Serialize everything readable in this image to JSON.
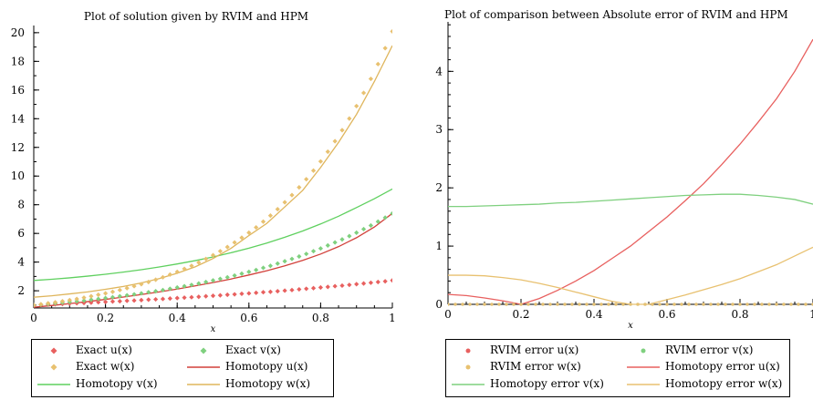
{
  "chart_data": [
    {
      "type": "line",
      "title": "Plot of solution given by RVIM and HPM",
      "xlabel": "x",
      "ylabel": "",
      "xlim": [
        0,
        1
      ],
      "ylim": [
        0.8,
        20.5
      ],
      "xticks": [
        0,
        0.2,
        0.4,
        0.6,
        0.8,
        1
      ],
      "xtick_labels": [
        "0",
        "0.2",
        "0.4",
        "0.6",
        "0.8",
        "1"
      ],
      "yticks": [
        2,
        4,
        6,
        8,
        10,
        12,
        14,
        16,
        18,
        20
      ],
      "ytick_labels": [
        "2",
        "4",
        "6",
        "8",
        "10",
        "12",
        "14",
        "16",
        "18",
        "20"
      ],
      "grid": false,
      "legend_position": "bottom",
      "series": [
        {
          "name": "Exact u(x)",
          "style": "points",
          "marker": "diamond",
          "color": "#e8605f",
          "x": [
            0,
            0.02,
            0.04,
            0.06,
            0.08,
            0.1,
            0.12,
            0.14,
            0.16,
            0.18,
            0.2,
            0.22,
            0.24,
            0.26,
            0.28,
            0.3,
            0.32,
            0.34,
            0.36,
            0.38,
            0.4,
            0.42,
            0.44,
            0.46,
            0.48,
            0.5,
            0.52,
            0.54,
            0.56,
            0.58,
            0.6,
            0.62,
            0.64,
            0.66,
            0.68,
            0.7,
            0.72,
            0.74,
            0.76,
            0.78,
            0.8,
            0.82,
            0.84,
            0.86,
            0.88,
            0.9,
            0.92,
            0.94,
            0.96,
            0.98,
            1
          ],
          "y": [
            1.0,
            1.02,
            1.04,
            1.06,
            1.08,
            1.11,
            1.13,
            1.15,
            1.17,
            1.2,
            1.22,
            1.25,
            1.27,
            1.3,
            1.32,
            1.35,
            1.38,
            1.4,
            1.43,
            1.46,
            1.49,
            1.52,
            1.55,
            1.58,
            1.62,
            1.65,
            1.68,
            1.72,
            1.75,
            1.79,
            1.82,
            1.86,
            1.9,
            1.93,
            1.97,
            2.01,
            2.05,
            2.1,
            2.14,
            2.18,
            2.23,
            2.27,
            2.32,
            2.36,
            2.41,
            2.46,
            2.51,
            2.56,
            2.61,
            2.66,
            2.72
          ]
        },
        {
          "name": "Exact v(x)",
          "style": "points",
          "marker": "diamond",
          "color": "#7fd07f",
          "x": [
            0,
            0.02,
            0.04,
            0.06,
            0.08,
            0.1,
            0.12,
            0.14,
            0.16,
            0.18,
            0.2,
            0.22,
            0.24,
            0.26,
            0.28,
            0.3,
            0.32,
            0.34,
            0.36,
            0.38,
            0.4,
            0.42,
            0.44,
            0.46,
            0.48,
            0.5,
            0.52,
            0.54,
            0.56,
            0.58,
            0.6,
            0.62,
            0.64,
            0.66,
            0.68,
            0.7,
            0.72,
            0.74,
            0.76,
            0.78,
            0.8,
            0.82,
            0.84,
            0.86,
            0.88,
            0.9,
            0.92,
            0.94,
            0.96,
            0.98,
            1
          ],
          "y": [
            1.0,
            1.04,
            1.08,
            1.13,
            1.17,
            1.22,
            1.27,
            1.32,
            1.38,
            1.43,
            1.49,
            1.55,
            1.62,
            1.68,
            1.75,
            1.82,
            1.9,
            1.97,
            2.05,
            2.14,
            2.23,
            2.32,
            2.41,
            2.51,
            2.61,
            2.72,
            2.83,
            2.94,
            3.06,
            3.19,
            3.32,
            3.45,
            3.6,
            3.74,
            3.9,
            4.06,
            4.22,
            4.39,
            4.57,
            4.76,
            4.95,
            5.16,
            5.37,
            5.58,
            5.81,
            6.05,
            6.3,
            6.55,
            6.82,
            7.1,
            7.39
          ]
        },
        {
          "name": "Exact w(x)",
          "style": "points",
          "marker": "diamond",
          "color": "#e8c170",
          "x": [
            0,
            0.02,
            0.04,
            0.06,
            0.08,
            0.1,
            0.12,
            0.14,
            0.16,
            0.18,
            0.2,
            0.22,
            0.24,
            0.26,
            0.28,
            0.3,
            0.32,
            0.34,
            0.36,
            0.38,
            0.4,
            0.42,
            0.44,
            0.46,
            0.48,
            0.5,
            0.52,
            0.54,
            0.56,
            0.58,
            0.6,
            0.62,
            0.64,
            0.66,
            0.68,
            0.7,
            0.72,
            0.74,
            0.76,
            0.78,
            0.8,
            0.82,
            0.84,
            0.86,
            0.88,
            0.9,
            0.92,
            0.94,
            0.96,
            0.98,
            1
          ],
          "y": [
            1.0,
            1.06,
            1.13,
            1.2,
            1.27,
            1.35,
            1.43,
            1.52,
            1.62,
            1.72,
            1.82,
            1.93,
            2.05,
            2.18,
            2.32,
            2.46,
            2.61,
            2.77,
            2.94,
            3.13,
            3.32,
            3.53,
            3.74,
            3.97,
            4.22,
            4.48,
            4.76,
            5.05,
            5.37,
            5.7,
            6.05,
            6.42,
            6.82,
            7.24,
            7.69,
            8.17,
            8.67,
            9.21,
            9.78,
            10.38,
            11.02,
            11.7,
            12.43,
            13.2,
            14.01,
            14.88,
            15.8,
            16.78,
            17.81,
            18.92,
            20.09
          ]
        },
        {
          "name": "Homotopy u(x)",
          "style": "line",
          "color": "#d2403a",
          "x": [
            0,
            0.05,
            0.1,
            0.15,
            0.2,
            0.25,
            0.3,
            0.35,
            0.4,
            0.45,
            0.5,
            0.55,
            0.6,
            0.65,
            0.7,
            0.75,
            0.8,
            0.85,
            0.9,
            0.95,
            1
          ],
          "y": [
            0.85,
            0.97,
            1.1,
            1.24,
            1.4,
            1.56,
            1.74,
            1.92,
            2.12,
            2.34,
            2.57,
            2.82,
            3.1,
            3.4,
            3.74,
            4.12,
            4.56,
            5.08,
            5.7,
            6.45,
            7.4
          ]
        },
        {
          "name": "Homotopy v(x)",
          "style": "line",
          "color": "#5fd05f",
          "x": [
            0,
            0.05,
            0.1,
            0.15,
            0.2,
            0.25,
            0.3,
            0.35,
            0.4,
            0.45,
            0.5,
            0.55,
            0.6,
            0.65,
            0.7,
            0.75,
            0.8,
            0.85,
            0.9,
            0.95,
            1
          ],
          "y": [
            2.72,
            2.8,
            2.9,
            3.02,
            3.15,
            3.3,
            3.47,
            3.66,
            3.87,
            4.1,
            4.36,
            4.65,
            4.97,
            5.33,
            5.73,
            6.17,
            6.66,
            7.2,
            7.8,
            8.42,
            9.1
          ]
        },
        {
          "name": "Homotopy w(x)",
          "style": "line",
          "color": "#dfb55c",
          "x": [
            0,
            0.05,
            0.1,
            0.15,
            0.2,
            0.25,
            0.3,
            0.35,
            0.4,
            0.45,
            0.5,
            0.55,
            0.6,
            0.65,
            0.7,
            0.75,
            0.8,
            0.85,
            0.9,
            0.95,
            1
          ],
          "y": [
            1.55,
            1.65,
            1.78,
            1.92,
            2.1,
            2.3,
            2.55,
            2.85,
            3.22,
            3.67,
            4.25,
            4.96,
            5.85,
            6.7,
            7.85,
            9.0,
            10.6,
            12.35,
            14.3,
            16.6,
            19.1
          ]
        }
      ],
      "legend": {
        "rows": [
          [
            "Exact u(x)",
            "Exact v(x)"
          ],
          [
            "Exact w(x)",
            "Homotopy u(x)"
          ],
          [
            "Homotopy v(x)",
            "Homotopy w(x)"
          ]
        ]
      }
    },
    {
      "type": "line",
      "title": "Plot of comparison between Absolute error of RVIM and HPM",
      "xlabel": "x",
      "ylabel": "",
      "xlim": [
        0,
        1
      ],
      "ylim": [
        0,
        4.85
      ],
      "xticks": [
        0,
        0.2,
        0.4,
        0.6,
        0.8,
        1
      ],
      "xtick_labels": [
        "0",
        "0.2",
        "0.4",
        "0.6",
        "0.8",
        "1"
      ],
      "yticks": [
        0,
        1,
        2,
        3,
        4
      ],
      "ytick_labels": [
        "0",
        "1",
        "2",
        "3",
        "4"
      ],
      "grid": false,
      "legend_position": "bottom",
      "series": [
        {
          "name": "RVIM error u(x)",
          "style": "points",
          "marker": "circle",
          "color": "#e8605f",
          "x": [
            0,
            0.02,
            0.04,
            0.06,
            0.08,
            0.1,
            0.12,
            0.14,
            0.16,
            0.18,
            0.2,
            0.22,
            0.24,
            0.26,
            0.28,
            0.3,
            0.32,
            0.34,
            0.36,
            0.38,
            0.4,
            0.42,
            0.44,
            0.46,
            0.48,
            0.5,
            0.52,
            0.54,
            0.56,
            0.58,
            0.6,
            0.62,
            0.64,
            0.66,
            0.68,
            0.7,
            0.72,
            0.74,
            0.76,
            0.78,
            0.8,
            0.82,
            0.84,
            0.86,
            0.88,
            0.9,
            0.92,
            0.94,
            0.96,
            0.98,
            1
          ],
          "y": [
            0,
            0,
            0,
            0,
            0,
            0,
            0,
            0,
            0,
            0,
            0,
            0,
            0,
            0,
            0,
            0,
            0,
            0,
            0,
            0,
            0,
            0,
            0,
            0,
            0,
            0,
            0,
            0,
            0,
            0,
            0,
            0,
            0,
            0,
            0,
            0,
            0,
            0,
            0,
            0,
            0,
            0,
            0,
            0,
            0,
            0,
            0,
            0,
            0,
            0,
            0
          ]
        },
        {
          "name": "RVIM error v(x)",
          "style": "points",
          "marker": "circle",
          "color": "#7fd07f",
          "x": [
            0,
            0.02,
            0.04,
            0.06,
            0.08,
            0.1,
            0.12,
            0.14,
            0.16,
            0.18,
            0.2,
            0.22,
            0.24,
            0.26,
            0.28,
            0.3,
            0.32,
            0.34,
            0.36,
            0.38,
            0.4,
            0.42,
            0.44,
            0.46,
            0.48,
            0.5,
            0.52,
            0.54,
            0.56,
            0.58,
            0.6,
            0.62,
            0.64,
            0.66,
            0.68,
            0.7,
            0.72,
            0.74,
            0.76,
            0.78,
            0.8,
            0.82,
            0.84,
            0.86,
            0.88,
            0.9,
            0.92,
            0.94,
            0.96,
            0.98,
            1
          ],
          "y": [
            0,
            0,
            0,
            0,
            0,
            0,
            0,
            0,
            0,
            0,
            0,
            0,
            0,
            0,
            0,
            0,
            0,
            0,
            0,
            0,
            0,
            0,
            0,
            0,
            0,
            0,
            0,
            0,
            0,
            0,
            0,
            0,
            0,
            0,
            0,
            0,
            0,
            0,
            0,
            0,
            0,
            0,
            0,
            0,
            0,
            0,
            0,
            0,
            0,
            0,
            0
          ]
        },
        {
          "name": "RVIM error w(x)",
          "style": "points",
          "marker": "circle",
          "color": "#e8c170",
          "x": [
            0,
            0.02,
            0.04,
            0.06,
            0.08,
            0.1,
            0.12,
            0.14,
            0.16,
            0.18,
            0.2,
            0.22,
            0.24,
            0.26,
            0.28,
            0.3,
            0.32,
            0.34,
            0.36,
            0.38,
            0.4,
            0.42,
            0.44,
            0.46,
            0.48,
            0.5,
            0.52,
            0.54,
            0.56,
            0.58,
            0.6,
            0.62,
            0.64,
            0.66,
            0.68,
            0.7,
            0.72,
            0.74,
            0.76,
            0.78,
            0.8,
            0.82,
            0.84,
            0.86,
            0.88,
            0.9,
            0.92,
            0.94,
            0.96,
            0.98,
            1
          ],
          "y": [
            0,
            0,
            0,
            0,
            0,
            0,
            0,
            0,
            0,
            0,
            0,
            0,
            0,
            0,
            0,
            0,
            0,
            0,
            0,
            0,
            0,
            0,
            0,
            0,
            0,
            0,
            0,
            0,
            0,
            0,
            0,
            0,
            0,
            0,
            0,
            0,
            0,
            0,
            0,
            0,
            0,
            0,
            0,
            0,
            0,
            0,
            0,
            0,
            0,
            0,
            0
          ]
        },
        {
          "name": "Homotopy error u(x)",
          "style": "line",
          "color": "#e8605f",
          "x": [
            0,
            0.05,
            0.1,
            0.15,
            0.2,
            0.25,
            0.3,
            0.35,
            0.4,
            0.45,
            0.5,
            0.55,
            0.6,
            0.65,
            0.7,
            0.75,
            0.8,
            0.85,
            0.9,
            0.95,
            1
          ],
          "y": [
            0.17,
            0.15,
            0.11,
            0.06,
            0.0,
            0.1,
            0.24,
            0.4,
            0.58,
            0.79,
            1.0,
            1.25,
            1.5,
            1.78,
            2.07,
            2.4,
            2.75,
            3.13,
            3.53,
            4.0,
            4.55
          ]
        },
        {
          "name": "Homotopy error v(x)",
          "style": "line",
          "color": "#7fd07f",
          "x": [
            0,
            0.05,
            0.1,
            0.15,
            0.2,
            0.25,
            0.3,
            0.35,
            0.4,
            0.45,
            0.5,
            0.55,
            0.6,
            0.65,
            0.7,
            0.75,
            0.8,
            0.85,
            0.9,
            0.95,
            1
          ],
          "y": [
            1.68,
            1.68,
            1.69,
            1.7,
            1.71,
            1.72,
            1.74,
            1.75,
            1.77,
            1.79,
            1.81,
            1.83,
            1.85,
            1.87,
            1.88,
            1.89,
            1.89,
            1.87,
            1.84,
            1.8,
            1.72
          ]
        },
        {
          "name": "Homotopy error w(x)",
          "style": "line",
          "color": "#e8c170",
          "x": [
            0,
            0.05,
            0.1,
            0.15,
            0.2,
            0.25,
            0.3,
            0.35,
            0.4,
            0.45,
            0.5,
            0.55,
            0.6,
            0.65,
            0.7,
            0.75,
            0.8,
            0.85,
            0.9,
            0.95,
            1
          ],
          "y": [
            0.5,
            0.5,
            0.49,
            0.46,
            0.42,
            0.36,
            0.29,
            0.21,
            0.13,
            0.05,
            0.0,
            0.0,
            0.08,
            0.16,
            0.25,
            0.34,
            0.44,
            0.56,
            0.68,
            0.83,
            0.98
          ]
        }
      ],
      "legend": {
        "rows": [
          [
            "RVIM error u(x)",
            "RVIM error v(x)"
          ],
          [
            "RVIM error w(x)",
            "Homotopy error u(x)"
          ],
          [
            "Homotopy error v(x)",
            "Homotopy error w(x)"
          ]
        ]
      }
    }
  ]
}
